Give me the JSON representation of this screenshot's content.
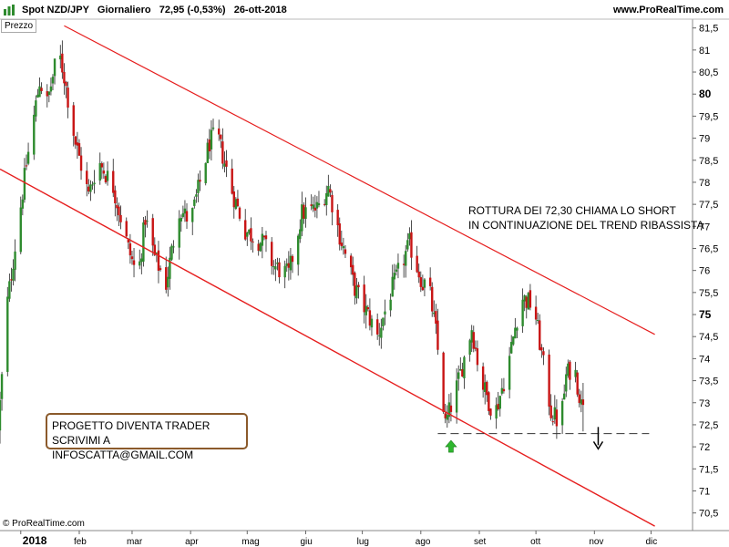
{
  "header": {
    "title": "Spot NZD/JPY   Giornaliero   72,95 (-0,53%)   26-ott-2018",
    "site": "www.ProRealTime.com",
    "icon": "bar-chart-icon"
  },
  "panel_label": "Prezzo",
  "copyright": "© ProRealTime.com",
  "annotation": {
    "line1": "ROTTURA DEI 72,30 CHIAMA LO SHORT",
    "line2": "IN CONTINUAZIONE DEL TREND RIBASSISTA"
  },
  "promo": {
    "line1": "PROGETTO DIVENTA TRADER",
    "line2": "SCRIVIMI A INFOSCATTA@GMAIL.COM"
  },
  "colors": {
    "up": "#2e8b2e",
    "down": "#c81414",
    "channel": "#e61e1e",
    "support": "#333333",
    "arrow_up": "#2eb82e",
    "arrow_down": "#000000"
  },
  "chart_data": {
    "type": "candlestick",
    "symbol": "Spot NZD/JPY",
    "timeframe": "Giornaliero",
    "ylim": [
      70.1,
      81.7
    ],
    "y_ticks": [
      "81,5",
      "81",
      "80,5",
      "80",
      "79,5",
      "79",
      "78,5",
      "78",
      "77,5",
      "77",
      "76,5",
      "76",
      "75,5",
      "75",
      "74,5",
      "74",
      "73,5",
      "73",
      "72,5",
      "72",
      "71,5",
      "71",
      "70,5"
    ],
    "y_tick_values": [
      81.5,
      81,
      80.5,
      80,
      79.5,
      79,
      78.5,
      78,
      77.5,
      77,
      76.5,
      76,
      75.5,
      75,
      74.5,
      74,
      73.5,
      73,
      72.5,
      72,
      71.5,
      71,
      70.5
    ],
    "bold_ticks": [
      "80",
      "75"
    ],
    "x_labels": [
      "2018",
      "feb",
      "mar",
      "apr",
      "mag",
      "giu",
      "lug",
      "ago",
      "set",
      "ott",
      "nov",
      "dic"
    ],
    "x_label_dates": [
      "2018-01-01",
      "2018-02-01",
      "2018-03-01",
      "2018-04-01",
      "2018-05-01",
      "2018-06-01",
      "2018-07-01",
      "2018-08-01",
      "2018-09-01",
      "2018-10-01",
      "2018-11-01",
      "2018-12-01"
    ],
    "x_range": [
      "2017-12-21",
      "2018-12-23"
    ],
    "close_path": [
      [
        "2017-12-21",
        72.4
      ],
      [
        "2017-12-26",
        75.3
      ],
      [
        "2018-01-05",
        78.4
      ],
      [
        "2018-01-12",
        80.3
      ],
      [
        "2018-01-16",
        79.8
      ],
      [
        "2018-01-22",
        81.0
      ],
      [
        "2018-01-25",
        80.4
      ],
      [
        "2018-01-31",
        78.9
      ],
      [
        "2018-02-07",
        77.7
      ],
      [
        "2018-02-12",
        78.5
      ],
      [
        "2018-02-20",
        77.9
      ],
      [
        "2018-02-28",
        76.5
      ],
      [
        "2018-03-05",
        75.8
      ],
      [
        "2018-03-09",
        77.2
      ],
      [
        "2018-03-14",
        76.3
      ],
      [
        "2018-03-20",
        75.7
      ],
      [
        "2018-03-27",
        77.4
      ],
      [
        "2018-04-02",
        77.1
      ],
      [
        "2018-04-12",
        78.9
      ],
      [
        "2018-04-16",
        79.1
      ],
      [
        "2018-04-24",
        77.8
      ],
      [
        "2018-05-01",
        76.9
      ],
      [
        "2018-05-11",
        76.6
      ],
      [
        "2018-05-16",
        76.1
      ],
      [
        "2018-05-24",
        75.9
      ],
      [
        "2018-05-31",
        77.3
      ],
      [
        "2018-06-08",
        77.4
      ],
      [
        "2018-06-14",
        77.9
      ],
      [
        "2018-06-20",
        76.8
      ],
      [
        "2018-06-28",
        75.6
      ],
      [
        "2018-07-06",
        74.9
      ],
      [
        "2018-07-10",
        74.5
      ],
      [
        "2018-07-17",
        75.5
      ],
      [
        "2018-07-27",
        76.6
      ],
      [
        "2018-08-03",
        75.7
      ],
      [
        "2018-08-06",
        75.7
      ],
      [
        "2018-08-10",
        74.6
      ],
      [
        "2018-08-15",
        72.5
      ],
      [
        "2018-08-22",
        73.5
      ],
      [
        "2018-08-29",
        74.7
      ],
      [
        "2018-09-03",
        73.5
      ],
      [
        "2018-09-10",
        72.7
      ],
      [
        "2018-09-17",
        73.8
      ],
      [
        "2018-09-24",
        75.4
      ],
      [
        "2018-10-01",
        75.2
      ],
      [
        "2018-10-05",
        74.1
      ],
      [
        "2018-10-10",
        72.8
      ],
      [
        "2018-10-15",
        72.5
      ],
      [
        "2018-10-18",
        73.6
      ],
      [
        "2018-10-22",
        73.9
      ],
      [
        "2018-10-26",
        72.95
      ]
    ],
    "channel_upper": {
      "from": [
        "2018-01-24",
        81.55
      ],
      "to": [
        "2018-12-03",
        74.55
      ]
    },
    "channel_lower": {
      "from": [
        "2017-12-21",
        78.3
      ],
      "to": [
        "2018-12-03",
        70.2
      ]
    },
    "support": {
      "value": 72.3,
      "from": "2018-08-10",
      "to": "2018-11-30"
    },
    "support_label": "72,30",
    "last_close": 72.95,
    "change_pct": -0.53,
    "date": "26-ott-2018"
  }
}
